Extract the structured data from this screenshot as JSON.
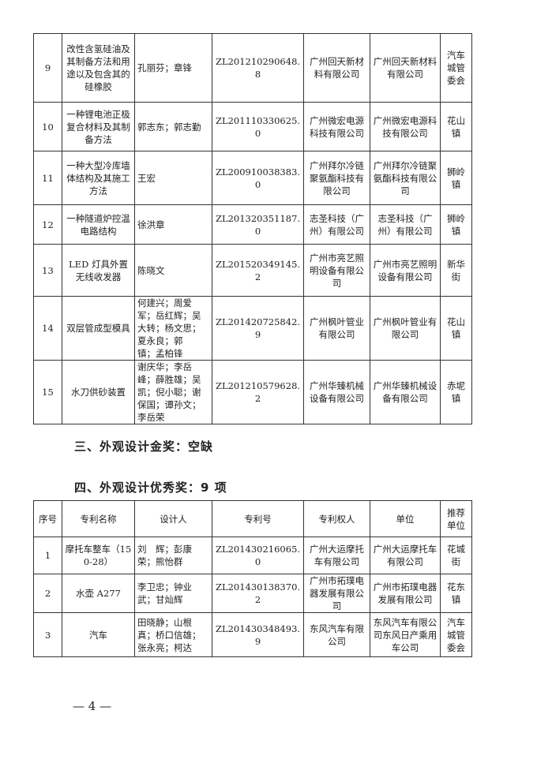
{
  "table1": {
    "rows": [
      {
        "no": "9",
        "name": "改性含氢硅油及其制备方法和用途以及包含其的硅橡胶",
        "inventors": "孔丽芬；章锋",
        "patent": "ZL201210290648.8",
        "holder": "广州回天新材料有限公司",
        "unit": "广州回天新材料有限公司",
        "recommender": "汽车城管委会"
      },
      {
        "no": "10",
        "name": "一种锂电池正极复合材料及其制备方法",
        "inventors": "郭志东；郭志勤",
        "patent": "ZL201110330625.0",
        "holder": "广州微宏电源科技有限公司",
        "unit": "广州微宏电源科技有限公司",
        "recommender": "花山镇"
      },
      {
        "no": "11",
        "name": "一种大型冷库墙体结构及其施工方法",
        "inventors": "王宏",
        "patent": "ZL200910038383.0",
        "holder": "广州拜尔冷链聚氨酯科技有限公司",
        "unit": "广州拜尔冷链聚氨酯科技有限公司",
        "recommender": "狮岭镇"
      },
      {
        "no": "12",
        "name": "一种隧道炉控温电路结构",
        "inventors": "徐洪章",
        "patent": "ZL201320351187.0",
        "holder": "志圣科技（广州）有限公司",
        "unit": "志圣科技（广州）有限公司",
        "recommender": "狮岭镇"
      },
      {
        "no": "13",
        "name": "LED 灯具外置无线收发器",
        "inventors": "陈晓文",
        "patent": "ZL201520349145.2",
        "holder": "广州市亮艺照明设备有限公司",
        "unit": "广州市亮艺照明设备有限公司",
        "recommender": "新华街"
      },
      {
        "no": "14",
        "name": "双层管成型模具",
        "inventors": "何建兴；周爱军；岳红辉；吴大转；杨文思；夏永良；郭　镇；孟柏锋",
        "patent": "ZL201420725842.9",
        "holder": "广州枫叶管业有限公司",
        "unit": "广州枫叶管业有限公司",
        "recommender": "花山镇"
      },
      {
        "no": "15",
        "name": "水刀供砂装置",
        "inventors": "谢庆华；李岳峰；薛胜雄；吴　凯；倪小聪；谢保国；谭孙文；李岳荣",
        "patent": "ZL201210579628.2",
        "holder": "广州华臻机械设备有限公司",
        "unit": "广州华臻机械设备有限公司",
        "recommender": "赤坭镇"
      }
    ]
  },
  "heading3": "三、外观设计金奖：空缺",
  "heading4": "四、外观设计优秀奖：9 项",
  "table2": {
    "headers": {
      "no": "序号",
      "name": "专利名称",
      "inventors": "设计人",
      "patent": "专利号",
      "holder": "专利权人",
      "unit": "单位",
      "recommender": "推荐单位"
    },
    "rows": [
      {
        "no": "1",
        "name": "摩托车整车（150-28）",
        "inventors": "刘　辉；彭康荣；熊怡群",
        "patent": "ZL201430216065.0",
        "holder": "广州大运摩托车有限公司",
        "unit": "广州大运摩托车有限公司",
        "recommender": "花城街"
      },
      {
        "no": "2",
        "name": "水壶 A277",
        "inventors": "李卫忠；钟业武；甘灿辉",
        "patent": "ZL201430138370.2",
        "holder": "广州市拓璞电器发展有限公司",
        "unit": "广州市拓璞电器发展有限公司",
        "recommender": "花东镇"
      },
      {
        "no": "3",
        "name": "汽车",
        "inventors": "田晓静；山根真；桥口信雄；张永亮；柯达",
        "patent": "ZL201430348493.9",
        "holder": "东风汽车有限公司",
        "unit": "东风汽车有限公司东风日产乘用车公司",
        "recommender": "汽车城管委会"
      }
    ]
  },
  "page_number": "— 4 —"
}
